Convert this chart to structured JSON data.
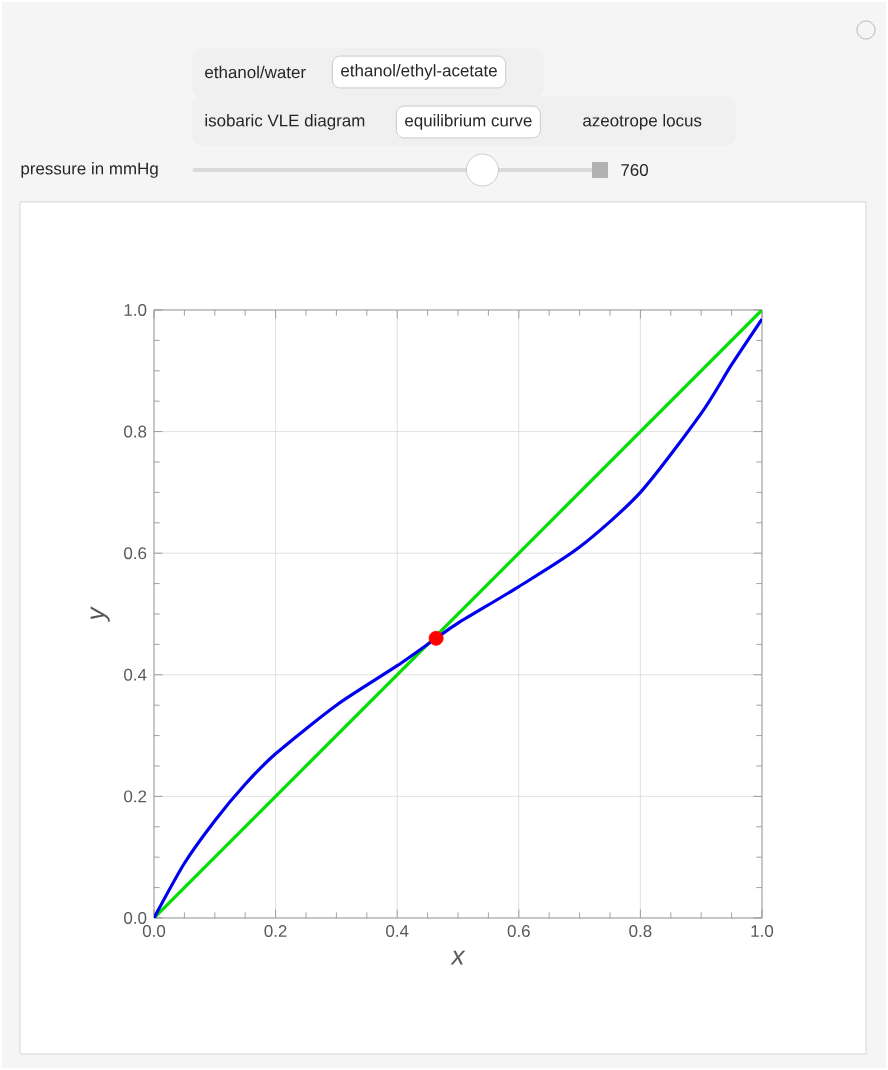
{
  "chart_data": {
    "type": "line",
    "xlabel": "x",
    "ylabel": "y",
    "xlim": [
      0,
      1
    ],
    "ylim": [
      0,
      1
    ],
    "xticks": [
      {
        "value": 0,
        "label": "0.0"
      },
      {
        "value": 0.2,
        "label": "0.2"
      },
      {
        "value": 0.4,
        "label": "0.4"
      },
      {
        "value": 0.6,
        "label": "0.6"
      },
      {
        "value": 0.8,
        "label": "0.8"
      },
      {
        "value": 1,
        "label": "1.0"
      }
    ],
    "yticks": [
      {
        "value": 0,
        "label": "0.0"
      },
      {
        "value": 0.2,
        "label": "0.2"
      },
      {
        "value": 0.4,
        "label": "0.4"
      },
      {
        "value": 0.6,
        "label": "0.6"
      },
      {
        "value": 0.8,
        "label": "0.8"
      },
      {
        "value": 1,
        "label": "1.0"
      }
    ],
    "grid": true,
    "series": [
      {
        "color": "#00e000",
        "marker": "none",
        "x": [
          0,
          1
        ],
        "values": [
          0,
          1
        ]
      },
      {
        "type": "line",
        "color": "#0000ee",
        "marker": "none",
        "x": [
          0,
          0.05,
          0.1,
          0.15,
          0.2,
          0.3,
          0.4,
          0.464,
          0.5,
          0.6,
          0.7,
          0.8,
          0.9,
          0.95,
          1
        ],
        "values": [
          0,
          0.09,
          0.16,
          0.22,
          0.27,
          0.35,
          0.415,
          0.46,
          0.485,
          0.545,
          0.61,
          0.7,
          0.83,
          0.91,
          0.985
        ]
      },
      {
        "type": "scatter",
        "color": "#ff0000",
        "marker": "circle",
        "x": [
          0.464
        ],
        "values": [
          0.46
        ]
      }
    ],
    "annotations": [
      "ethanol/water",
      "ethanol/ethyl-acetate",
      "isobaric VLE diagram",
      "equilibrium curve",
      "azeotrope locus",
      "pressure in mmHg",
      "760"
    ]
  }
}
